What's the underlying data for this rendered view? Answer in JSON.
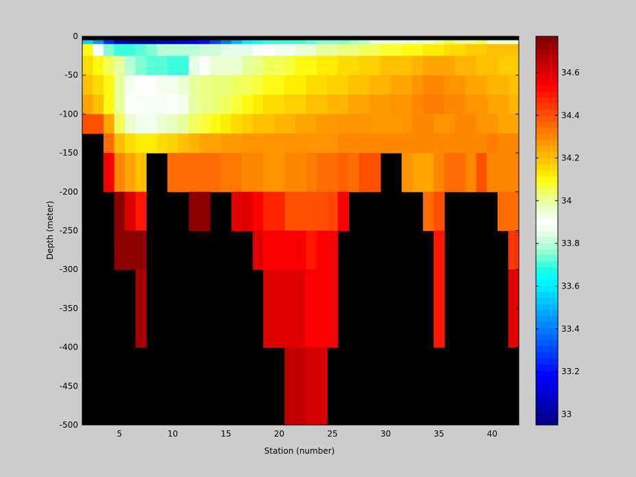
{
  "chart_data": {
    "type": "heatmap",
    "title": "",
    "xlabel": "Station (number)",
    "ylabel": "Depth (meter)",
    "xlim": [
      1.5,
      42.5
    ],
    "ylim": [
      -500,
      0
    ],
    "xticks": [
      5,
      10,
      15,
      20,
      25,
      30,
      35,
      40
    ],
    "xtick_labels": [
      "5",
      "10",
      "15",
      "20",
      "25",
      "30",
      "35",
      "40"
    ],
    "yticks": [
      0,
      -50,
      -100,
      -150,
      -200,
      -250,
      -300,
      -350,
      -400,
      -450,
      -500
    ],
    "ytick_labels": [
      "0",
      "-50",
      "-100",
      "-150",
      "-200",
      "-250",
      "-300",
      "-350",
      "-400",
      "-450",
      "-500"
    ],
    "depth_bins": [
      [
        -5,
        -10
      ],
      [
        -10,
        -25
      ],
      [
        -25,
        -50
      ],
      [
        -50,
        -75
      ],
      [
        -75,
        -100
      ],
      [
        -100,
        -125
      ],
      [
        -125,
        -150
      ],
      [
        -150,
        -200
      ],
      [
        -200,
        -250
      ],
      [
        -250,
        -300
      ],
      [
        -300,
        -400
      ],
      [
        -400,
        -500
      ]
    ],
    "stations": [
      2,
      3,
      4,
      5,
      6,
      7,
      8,
      9,
      10,
      11,
      12,
      13,
      14,
      15,
      16,
      17,
      18,
      19,
      20,
      21,
      22,
      23,
      24,
      25,
      26,
      27,
      28,
      29,
      30,
      31,
      32,
      33,
      34,
      35,
      36,
      37,
      38,
      39,
      40,
      41,
      42
    ],
    "no_data_color": "#000000",
    "colorbar": {
      "colormap": "jet-like",
      "clim": [
        32.95,
        34.77
      ],
      "ticks": [
        33,
        33.2,
        33.4,
        33.6,
        33.8,
        34,
        34.2,
        34.4,
        34.6
      ],
      "tick_labels": [
        "33",
        "33.2",
        "33.4",
        "33.6",
        "33.8",
        "34",
        "34.2",
        "34.4",
        "34.6"
      ]
    },
    "salinity": [
      [
        33.55,
        33.45,
        33.25,
        33.05,
        33.0,
        33.0,
        33.0,
        33.05,
        33.05,
        33.1,
        33.15,
        33.2,
        33.3,
        33.4,
        33.5,
        33.6,
        33.65,
        33.7,
        33.7,
        33.7,
        33.7,
        33.72,
        33.75,
        33.75,
        33.75,
        33.78,
        33.8,
        33.85,
        33.85,
        33.85,
        33.85,
        33.95,
        33.95,
        34.0,
        34.05,
        34.0,
        34.0,
        34.05,
        33.95,
        33.95,
        33.95
      ],
      [
        34.1,
        33.9,
        33.75,
        33.7,
        33.7,
        33.72,
        33.75,
        33.8,
        33.8,
        33.8,
        33.8,
        33.82,
        33.82,
        33.85,
        33.85,
        33.85,
        33.9,
        33.9,
        33.92,
        33.92,
        33.95,
        33.95,
        34.0,
        34.0,
        34.02,
        34.02,
        34.05,
        34.05,
        34.08,
        34.08,
        34.1,
        34.1,
        34.12,
        34.12,
        34.15,
        34.15,
        34.18,
        34.18,
        34.2,
        34.2,
        34.2
      ],
      [
        34.15,
        34.1,
        34.05,
        34.0,
        33.8,
        33.75,
        33.72,
        33.72,
        33.7,
        33.7,
        33.85,
        33.9,
        33.95,
        33.95,
        33.95,
        34.0,
        34.02,
        34.05,
        34.05,
        34.07,
        34.1,
        34.1,
        34.12,
        34.12,
        34.15,
        34.15,
        34.17,
        34.17,
        34.2,
        34.2,
        34.2,
        34.22,
        34.25,
        34.25,
        34.25,
        34.22,
        34.22,
        34.2,
        34.2,
        34.18,
        34.18
      ],
      [
        34.2,
        34.15,
        34.1,
        34.0,
        33.92,
        33.9,
        33.9,
        33.92,
        33.92,
        33.95,
        34.0,
        34.02,
        34.03,
        34.03,
        34.05,
        34.05,
        34.07,
        34.1,
        34.1,
        34.12,
        34.12,
        34.15,
        34.15,
        34.17,
        34.17,
        34.2,
        34.2,
        34.22,
        34.22,
        34.25,
        34.25,
        34.28,
        34.3,
        34.3,
        34.28,
        34.28,
        34.25,
        34.25,
        34.22,
        34.22,
        34.2
      ],
      [
        34.25,
        34.2,
        34.1,
        34.0,
        33.9,
        33.88,
        33.88,
        33.88,
        33.9,
        33.92,
        34.0,
        34.02,
        34.03,
        34.05,
        34.07,
        34.1,
        34.12,
        34.15,
        34.15,
        34.17,
        34.17,
        34.2,
        34.2,
        34.22,
        34.22,
        34.25,
        34.25,
        34.27,
        34.27,
        34.28,
        34.28,
        34.3,
        34.32,
        34.32,
        34.3,
        34.3,
        34.28,
        34.28,
        34.25,
        34.25,
        34.22
      ],
      [
        34.4,
        34.4,
        34.25,
        34.05,
        33.95,
        33.92,
        33.92,
        33.95,
        33.97,
        34.0,
        34.05,
        34.07,
        34.1,
        34.12,
        34.15,
        34.17,
        34.2,
        34.2,
        34.22,
        34.22,
        34.25,
        34.25,
        34.27,
        34.27,
        34.28,
        34.28,
        34.28,
        34.27,
        34.27,
        34.27,
        34.28,
        34.3,
        34.3,
        34.28,
        34.28,
        34.3,
        34.3,
        34.28,
        34.28,
        34.25,
        34.25
      ],
      [
        null,
        null,
        34.35,
        34.2,
        34.15,
        34.12,
        34.12,
        34.15,
        34.17,
        34.2,
        34.22,
        34.25,
        34.25,
        34.27,
        34.27,
        34.28,
        34.28,
        34.28,
        34.28,
        34.28,
        34.28,
        34.28,
        34.28,
        34.28,
        34.3,
        34.3,
        34.3,
        34.3,
        34.3,
        34.3,
        34.3,
        34.3,
        34.3,
        34.3,
        34.3,
        34.3,
        34.3,
        34.3,
        34.32,
        34.3,
        34.3
      ],
      [
        null,
        null,
        34.55,
        34.3,
        34.25,
        34.2,
        null,
        null,
        34.35,
        34.35,
        34.35,
        34.35,
        34.35,
        34.33,
        34.33,
        34.3,
        34.3,
        34.28,
        34.28,
        34.3,
        34.3,
        34.32,
        34.35,
        34.35,
        34.37,
        34.35,
        34.4,
        34.4,
        null,
        null,
        34.28,
        34.25,
        34.25,
        34.3,
        34.35,
        34.35,
        34.3,
        34.4,
        34.3,
        34.3,
        34.3
      ],
      [
        null,
        null,
        null,
        34.75,
        34.6,
        34.5,
        null,
        null,
        null,
        null,
        34.75,
        34.75,
        null,
        null,
        34.6,
        34.6,
        34.55,
        34.48,
        34.48,
        34.4,
        34.4,
        34.4,
        34.4,
        34.42,
        34.55,
        null,
        null,
        null,
        null,
        null,
        null,
        null,
        34.35,
        34.4,
        null,
        null,
        null,
        null,
        null,
        34.35,
        34.35
      ],
      [
        null,
        null,
        null,
        34.75,
        34.75,
        34.75,
        null,
        null,
        null,
        null,
        null,
        null,
        null,
        null,
        null,
        null,
        34.6,
        34.55,
        34.55,
        34.55,
        34.55,
        34.5,
        34.55,
        34.55,
        null,
        null,
        null,
        null,
        null,
        null,
        null,
        null,
        null,
        34.5,
        null,
        null,
        null,
        null,
        null,
        null,
        34.45
      ],
      [
        null,
        null,
        null,
        null,
        null,
        34.7,
        null,
        null,
        null,
        null,
        null,
        null,
        null,
        null,
        null,
        null,
        null,
        34.6,
        34.6,
        34.6,
        34.6,
        34.55,
        34.55,
        34.55,
        null,
        null,
        null,
        null,
        null,
        null,
        null,
        null,
        null,
        34.5,
        null,
        null,
        null,
        null,
        null,
        null,
        34.6
      ],
      [
        null,
        null,
        null,
        null,
        null,
        null,
        null,
        null,
        null,
        null,
        null,
        null,
        null,
        null,
        null,
        null,
        null,
        null,
        null,
        34.65,
        34.65,
        34.62,
        34.62,
        null,
        null,
        null,
        null,
        null,
        null,
        null,
        null,
        null,
        null,
        null,
        null,
        null,
        null,
        null,
        null,
        null,
        null
      ]
    ]
  }
}
